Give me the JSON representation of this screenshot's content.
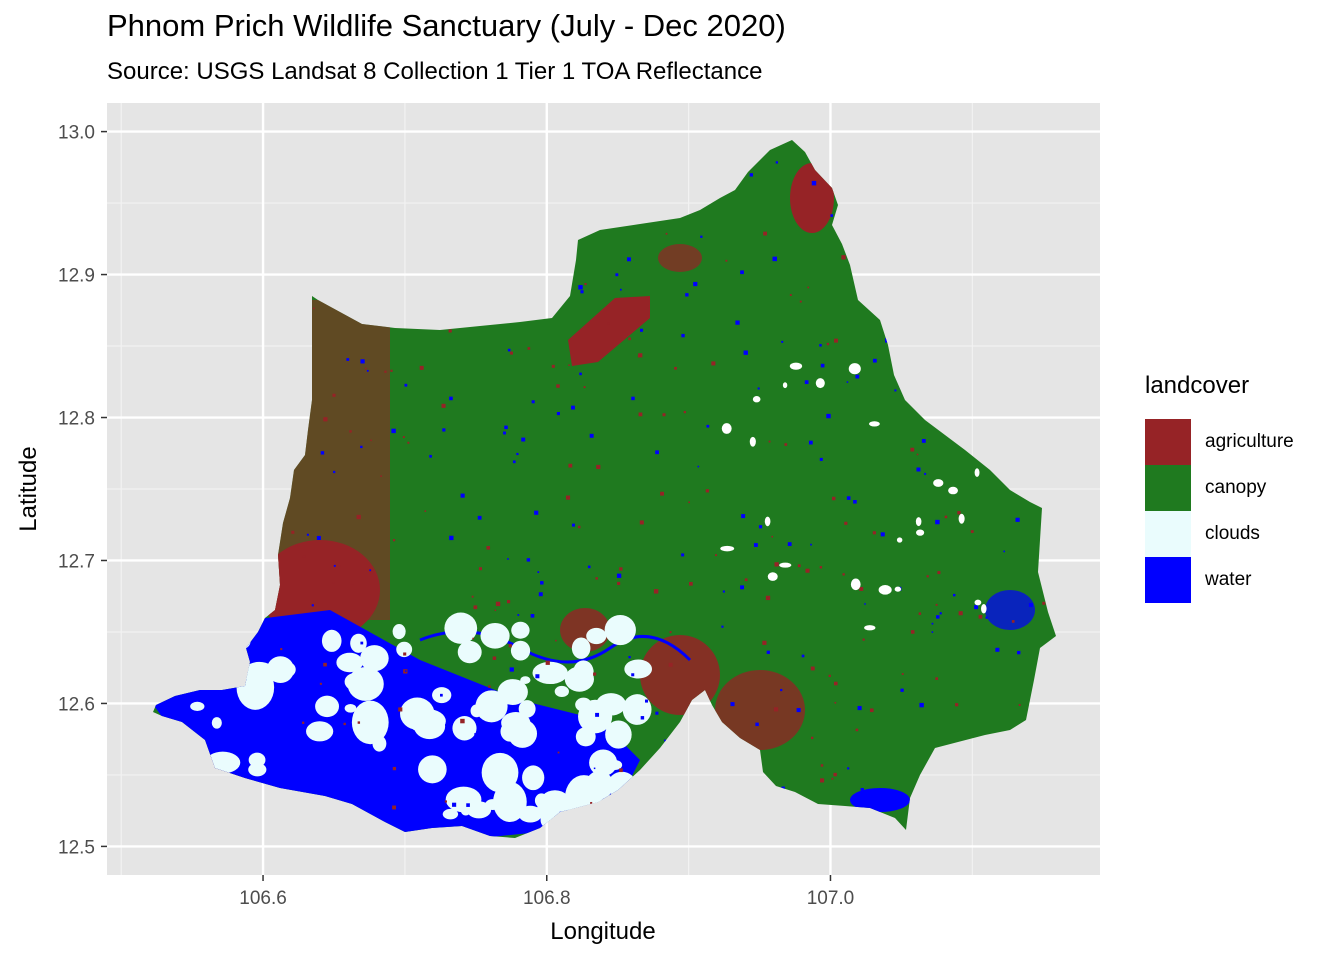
{
  "title": "Phnom Prich Wildlife Sanctuary (July - Dec 2020)",
  "subtitle": "Source: USGS Landsat 8 Collection 1 Tier 1 TOA Reflectance",
  "map": {
    "type": "raster",
    "x_label": "Longitude",
    "y_label": "Latitude",
    "x_range": [
      106.49,
      107.19
    ],
    "y_range": [
      12.48,
      13.02
    ],
    "x_ticks": [
      "106.6",
      "106.8",
      "107.0"
    ],
    "y_ticks": [
      "12.5",
      "12.6",
      "12.7",
      "12.8",
      "12.9",
      "13.0"
    ],
    "background": "#e5e5e5"
  },
  "legend": {
    "title": "landcover",
    "items": [
      {
        "label": "agriculture",
        "color": "#962326"
      },
      {
        "label": "canopy",
        "color": "#1f7a1f"
      },
      {
        "label": "clouds",
        "color": "#eafcfd"
      },
      {
        "label": "water",
        "color": "#0000ff"
      }
    ]
  }
}
